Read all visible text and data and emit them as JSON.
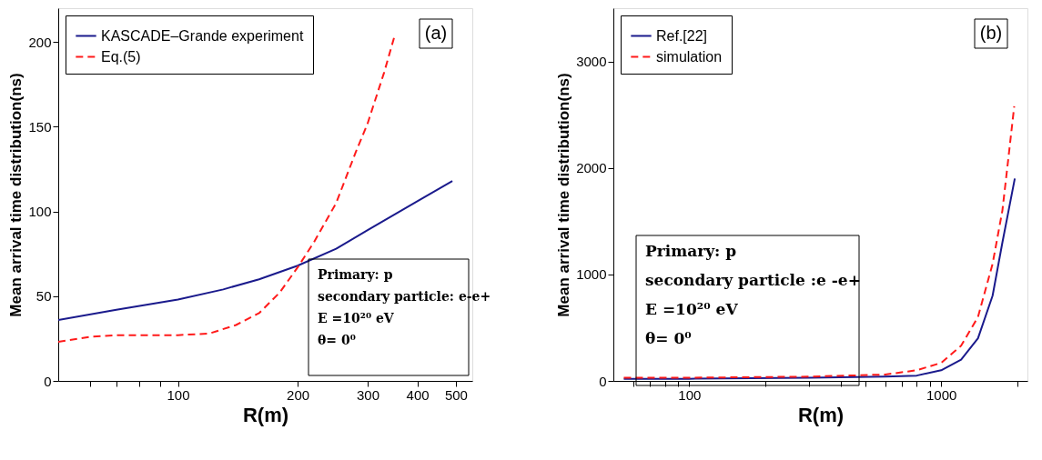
{
  "chart_data": [
    {
      "type": "line",
      "xlabel": "R(m)",
      "ylabel": "Mean arrival time distribution(ns)",
      "log": "x",
      "legend": "top left",
      "grid": false,
      "marker": "none",
      "xlim": [
        50,
        550
      ],
      "ylim": [
        0,
        220
      ],
      "xticks": [
        {
          "value": 60,
          "label": null
        },
        {
          "value": 70,
          "label": null
        },
        {
          "value": 80,
          "label": null
        },
        {
          "value": 90,
          "label": null
        },
        100,
        200,
        300,
        400,
        500
      ],
      "yticks": [
        0,
        50,
        100,
        150,
        200
      ],
      "annotations": [
        "(a)",
        "Primary: p",
        "secondary particle: e-e+",
        "E =10²⁰ eV",
        "θ= 0⁰"
      ],
      "series": [
        {
          "name": "KASCADE–Grande experiment",
          "color": "#1a1a8c",
          "line_style": "solid",
          "x": [
            50,
            70,
            100,
            130,
            160,
            200,
            250,
            300,
            400,
            490
          ],
          "values": [
            36,
            42,
            48,
            54,
            60,
            68,
            78,
            89,
            106,
            118
          ]
        },
        {
          "name": "Eq.(5)",
          "color": "#ff1a1a",
          "line_style": "dashed",
          "x": [
            50,
            60,
            70,
            100,
            120,
            140,
            160,
            180,
            200,
            220,
            250,
            280,
            300,
            330,
            350
          ],
          "values": [
            23,
            26,
            27,
            27,
            28,
            33,
            40,
            52,
            67,
            82,
            105,
            135,
            152,
            182,
            203
          ]
        }
      ]
    },
    {
      "type": "line",
      "xlabel": "R(m)",
      "ylabel": "Mean arrival time distribution(ns)",
      "log": "x",
      "legend": "top left",
      "grid": false,
      "marker": "none",
      "xlim": [
        50,
        2200
      ],
      "ylim": [
        0,
        3500
      ],
      "xticks": [
        {
          "value": 60,
          "label": null
        },
        {
          "value": 70,
          "label": null
        },
        {
          "value": 80,
          "label": null
        },
        {
          "value": 90,
          "label": null
        },
        100,
        {
          "value": 200,
          "label": null
        },
        {
          "value": 300,
          "label": null
        },
        {
          "value": 400,
          "label": null
        },
        {
          "value": 500,
          "label": null
        },
        {
          "value": 600,
          "label": null
        },
        {
          "value": 700,
          "label": null
        },
        {
          "value": 800,
          "label": null
        },
        {
          "value": 900,
          "label": null
        },
        1000,
        {
          "value": 2000,
          "label": null
        }
      ],
      "yticks": [
        0,
        1000,
        2000,
        3000
      ],
      "annotations": [
        "(b)",
        "Primary: p",
        "secondary particle :e -e+",
        "E =10²⁰ eV",
        "θ= 0⁰"
      ],
      "series": [
        {
          "name": "Ref.[22]",
          "color": "#1a1a8c",
          "line_style": "solid",
          "x": [
            55,
            100,
            300,
            600,
            800,
            1000,
            1200,
            1400,
            1600,
            1750,
            1960
          ],
          "values": [
            20,
            20,
            30,
            40,
            50,
            100,
            200,
            400,
            800,
            1300,
            1900
          ]
        },
        {
          "name": "simulation",
          "color": "#ff1a1a",
          "line_style": "dashed",
          "x": [
            55,
            100,
            300,
            600,
            800,
            1000,
            1200,
            1400,
            1600,
            1750,
            1850,
            1950
          ],
          "values": [
            30,
            30,
            40,
            60,
            100,
            170,
            330,
            600,
            1100,
            1600,
            2100,
            2580
          ]
        }
      ]
    }
  ]
}
